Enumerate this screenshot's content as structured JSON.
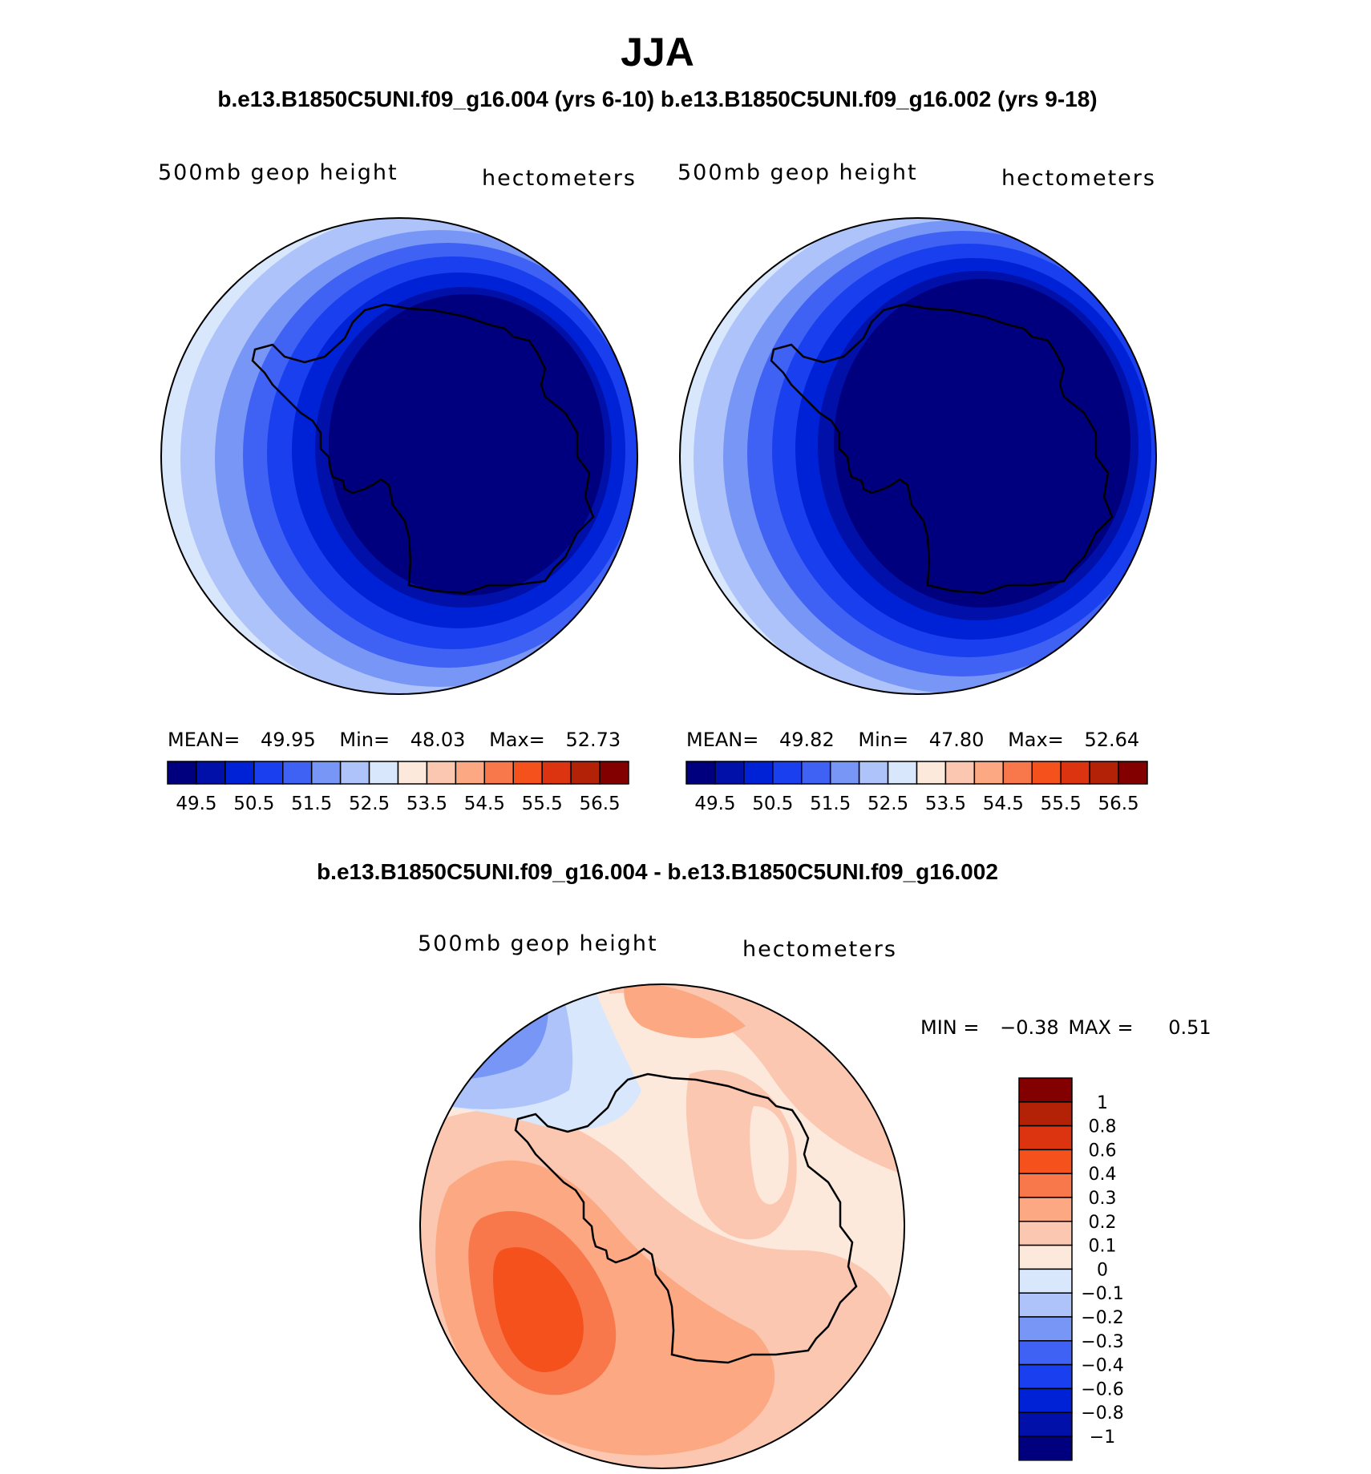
{
  "page": {
    "title": "JJA",
    "subtitle": "b.e13.B1850C5UNI.f09_g16.004 (yrs 6-10) b.e13.B1850C5UNI.f09_g16.002 (yrs 9-18)",
    "diff_title": "b.e13.B1850C5UNI.f09_g16.004 - b.e13.B1850C5UNI.f09_g16.002"
  },
  "panels": [
    {
      "variable": "500mb geop height",
      "units": "hectometers",
      "stats": {
        "mean_label": "MEAN=",
        "mean": "49.95",
        "min_label": "Min=",
        "min": "48.03",
        "max_label": "Max=",
        "max": "52.73"
      }
    },
    {
      "variable": "500mb geop height",
      "units": "hectometers",
      "stats": {
        "mean_label": "MEAN=",
        "mean": "49.82",
        "min_label": "Min=",
        "min": "47.80",
        "max_label": "Max=",
        "max": "52.64"
      }
    }
  ],
  "field_colorbar": {
    "colors": [
      "#00007f",
      "#0010a8",
      "#0022d6",
      "#1a3fee",
      "#3f62f4",
      "#7896f6",
      "#adc3fa",
      "#d8e7fc",
      "#fde9dc",
      "#fcc7b0",
      "#fba883",
      "#f8784c",
      "#f4511d",
      "#dc3311",
      "#b32107",
      "#820000"
    ],
    "tick_labels": [
      "49.5",
      "50.5",
      "51.5",
      "52.5",
      "53.5",
      "54.5",
      "55.5",
      "56.5"
    ]
  },
  "diff_panel": {
    "variable": "500mb geop height",
    "units": "hectometers",
    "min_label": "MIN =",
    "min": "−0.38",
    "max_label": "MAX =",
    "max": "0.51"
  },
  "diff_colorbar": {
    "colors_top_to_bottom": [
      "#820000",
      "#b32107",
      "#dc3311",
      "#f4511d",
      "#f8784c",
      "#fba883",
      "#fcc7b0",
      "#fde9dc",
      "#d8e7fc",
      "#adc3fa",
      "#7896f6",
      "#3f62f4",
      "#1a3fee",
      "#0022d6",
      "#0010a8",
      "#00007f"
    ],
    "tick_labels": [
      "1",
      "0.8",
      "0.6",
      "0.4",
      "0.3",
      "0.2",
      "0.1",
      "0",
      "−0.1",
      "−0.2",
      "−0.3",
      "−0.4",
      "−0.6",
      "−0.8",
      "−1"
    ]
  }
}
